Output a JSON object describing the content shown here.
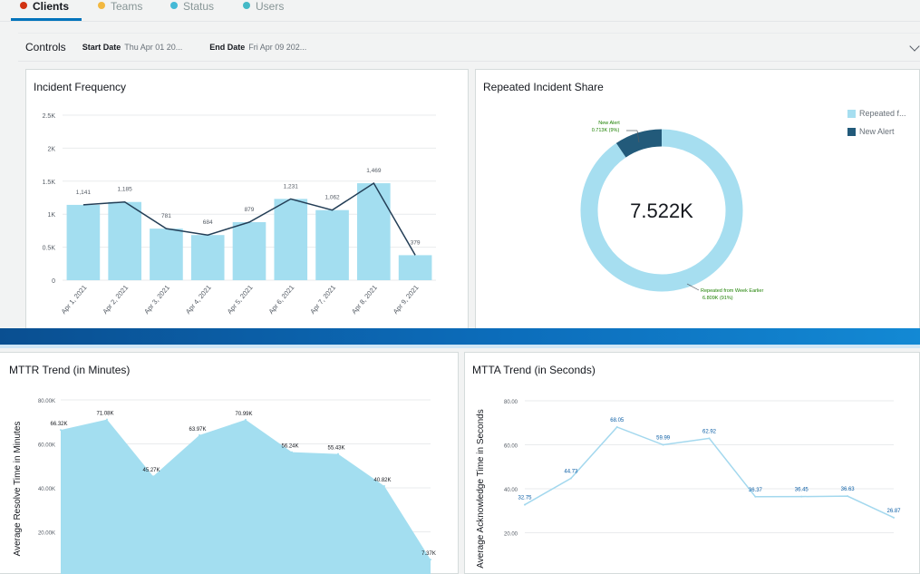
{
  "tabs": [
    {
      "label": "Clients",
      "color": "#d13212",
      "active": true
    },
    {
      "label": "Teams",
      "color": "#f2b840",
      "active": false
    },
    {
      "label": "Status",
      "color": "#44b9d6",
      "active": false
    },
    {
      "label": "Users",
      "color": "#44b9c6",
      "active": false
    }
  ],
  "controls": {
    "title": "Controls",
    "start_label": "Start Date",
    "start_value": "Thu Apr 01 20...",
    "end_label": "End Date",
    "end_value": "Fri Apr 09 202..."
  },
  "panels": {
    "freq_title": "Incident Frequency",
    "share_title": "Repeated Incident Share",
    "mttr_title": "MTTR Trend (in Minutes)",
    "mtta_title": "MTTA Trend (in Seconds)"
  },
  "chart_data": [
    {
      "type": "bar",
      "title": "Incident Frequency",
      "categories": [
        "Apr 1, 2021",
        "Apr 2, 2021",
        "Apr 3, 2021",
        "Apr 4, 2021",
        "Apr 5, 2021",
        "Apr 6, 2021",
        "Apr 7, 2021",
        "Apr 8, 2021",
        "Apr 9, 2021"
      ],
      "values": [
        1141,
        1185,
        781,
        684,
        879,
        1231,
        1062,
        1469,
        379
      ],
      "value_labels": [
        "1,141",
        "1,185",
        "781",
        "684",
        "879",
        "1,231",
        "1,062",
        "1,469",
        "379"
      ],
      "line_overlay": true,
      "yticks": [
        "0",
        "0.5K",
        "1K",
        "1.5K",
        "2K",
        "2.5K"
      ],
      "ylim": [
        0,
        2500
      ],
      "bar_color": "#a3def0",
      "line_color": "#233e56",
      "grid": true
    },
    {
      "type": "pie",
      "title": "Repeated Incident Share",
      "center_label": "7.522K",
      "slices": [
        {
          "name": "Repeated from Week Earlier",
          "value": 6809,
          "label": "6.809K (91%)",
          "color": "#a6def0"
        },
        {
          "name": "New Alert",
          "value": 713,
          "label": "0.713K (9%)",
          "color": "#225a7a"
        }
      ],
      "legend": [
        "Repeated f...",
        "New Alert"
      ],
      "legend_placement": "top-right"
    },
    {
      "type": "area",
      "title": "MTTR Trend (in Minutes)",
      "ylabel": "Average Resolve Time in Minutes",
      "values": [
        66320,
        71080,
        45270,
        63970,
        70990,
        56240,
        55430,
        40820,
        7370
      ],
      "value_labels": [
        "66.32K",
        "71.08K",
        "45.27K",
        "63.97K",
        "70.99K",
        "56.24K",
        "55.43K",
        "40.82K",
        "7.37K"
      ],
      "yticks": [
        "20.00K",
        "40.00K",
        "60.00K",
        "80.00K"
      ],
      "ylim": [
        0,
        80000
      ],
      "color": "#a3def0",
      "grid": true
    },
    {
      "type": "line",
      "title": "MTTA Trend (in Seconds)",
      "ylabel": "Average Acknowledge Time in Seconds",
      "values": [
        32.75,
        44.73,
        68.05,
        59.99,
        62.92,
        36.37,
        36.45,
        36.63,
        26.87
      ],
      "value_labels": [
        "32.75",
        "44.73",
        "68.05",
        "59.99",
        "62.92",
        "36.37",
        "36.45",
        "36.63",
        "26.87"
      ],
      "yticks": [
        "20.00",
        "40.00",
        "60.00",
        "80.00"
      ],
      "ylim": [
        0,
        80
      ],
      "color": "#a3d8ee",
      "grid": true
    }
  ]
}
